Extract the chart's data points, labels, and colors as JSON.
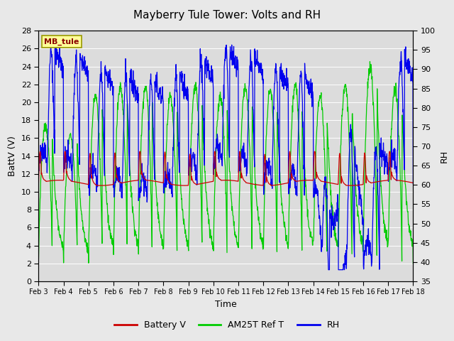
{
  "title": "Mayberry Tule Tower: Volts and RH",
  "xlabel": "Time",
  "ylabel_left": "BattV (V)",
  "ylabel_right": "RH",
  "ylim_left": [
    0,
    28
  ],
  "ylim_right": [
    35,
    100
  ],
  "yticks_left": [
    0,
    2,
    4,
    6,
    8,
    10,
    12,
    14,
    16,
    18,
    20,
    22,
    24,
    26,
    28
  ],
  "yticks_right": [
    35,
    40,
    45,
    50,
    55,
    60,
    65,
    70,
    75,
    80,
    85,
    90,
    95,
    100
  ],
  "xtick_labels": [
    "Feb 3",
    "Feb 4",
    "Feb 5",
    "Feb 6",
    "Feb 7",
    "Feb 8",
    "Feb 9",
    "Feb 10",
    "Feb 11",
    "Feb 12",
    "Feb 13",
    "Feb 14",
    "Feb 15",
    "Feb 16",
    "Feb 17",
    "Feb 18"
  ],
  "station_label": "MB_tule",
  "fig_bg_color": "#E8E8E8",
  "plot_bg_color": "#DCDCDC",
  "grid_color": "#FFFFFF",
  "line_battery_color": "#CC0000",
  "line_green_color": "#00CC00",
  "line_blue_color": "#0000EE",
  "legend_labels": [
    "Battery V",
    "AM25T Ref T",
    "RH"
  ],
  "title_fontsize": 11,
  "axis_fontsize": 9,
  "tick_fontsize": 8,
  "label_box_facecolor": "#FFFF99",
  "label_box_edgecolor": "#999900",
  "label_text_color": "#8B0000"
}
